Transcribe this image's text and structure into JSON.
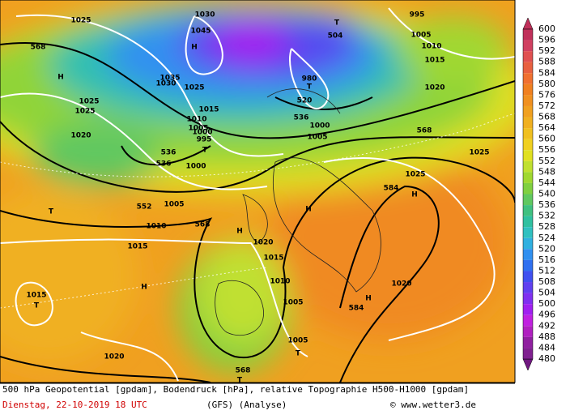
{
  "map": {
    "labels": [
      "568",
      "H",
      "1025",
      "1025",
      "1025",
      "1020",
      "1030",
      "1045",
      "H",
      "1035",
      "1030",
      "1025",
      "1015",
      "1010",
      "1005",
      "1000",
      "995",
      "T",
      "536",
      "536",
      "1000",
      "T",
      "504",
      "995",
      "1005",
      "1010",
      "1015",
      "980",
      "T",
      "520",
      "536",
      "1000",
      "1005",
      "568",
      "1020",
      "1025",
      "1025",
      "584",
      "H",
      "H",
      "552",
      "1005",
      "T",
      "1010",
      "568",
      "H",
      "1020",
      "1015",
      "1015",
      "1010",
      "H",
      "1015",
      "T",
      "1020",
      "584",
      "H",
      "1005",
      "1005",
      "T",
      "1020",
      "568",
      "T"
    ]
  },
  "colorbar": {
    "labels": [
      600,
      596,
      592,
      588,
      584,
      580,
      576,
      572,
      568,
      564,
      560,
      556,
      552,
      548,
      544,
      540,
      536,
      532,
      528,
      524,
      520,
      516,
      512,
      508,
      504,
      500,
      496,
      492,
      488,
      484,
      480
    ],
    "colors": [
      "#c0305a",
      "#d04060",
      "#e05050",
      "#e86040",
      "#f07030",
      "#f08020",
      "#f09020",
      "#f0a020",
      "#f0b020",
      "#f0c020",
      "#f0d020",
      "#e0e020",
      "#c0e030",
      "#a0d830",
      "#80d040",
      "#60c860",
      "#40c080",
      "#30c0a0",
      "#30c0c0",
      "#30b0e0",
      "#3090f0",
      "#3070f0",
      "#4050f0",
      "#6040f0",
      "#8030f0",
      "#a020f0",
      "#c020e0",
      "#b020c0",
      "#9020a0",
      "#802090",
      "#701880"
    ]
  },
  "footer": {
    "description": "500 hPa Geopotential [gpdam], Bodendruck [hPa], relative Topographie H500-H1000 [gpdam]",
    "date": "Dienstag, 22-10-2019  18 UTC",
    "model": "(GFS)  (Analyse)",
    "credit": "© www.wetter3.de"
  }
}
